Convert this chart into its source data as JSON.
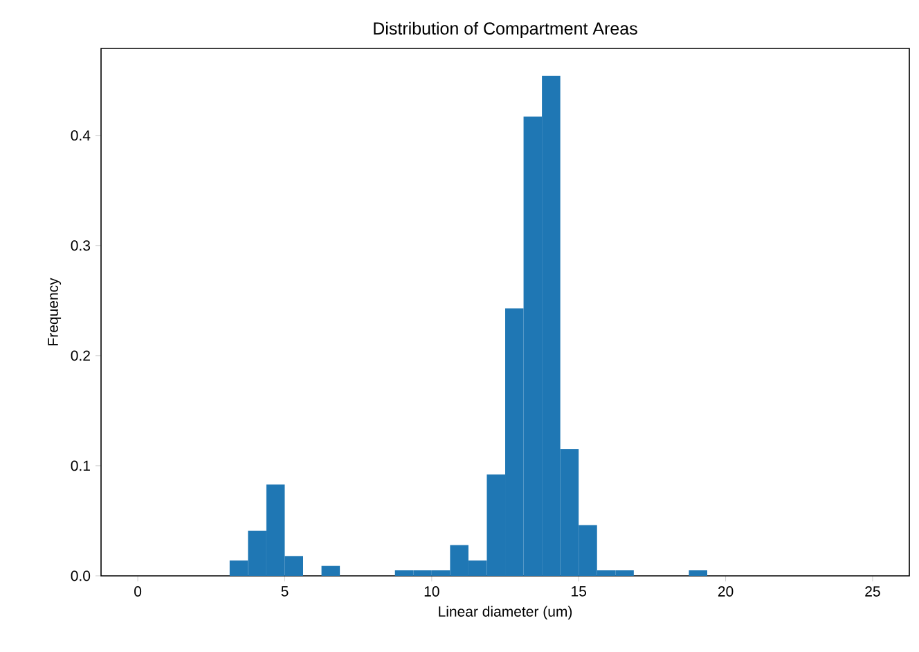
{
  "chart_data": {
    "type": "histogram",
    "title": "Distribution of Compartment Areas",
    "xlabel": "Linear diameter (um)",
    "ylabel": "Frequency",
    "bins": [
      0,
      0.625,
      1.25,
      1.875,
      2.5,
      3.125,
      3.75,
      4.375,
      5,
      5.625,
      6.25,
      6.875,
      7.5,
      8.125,
      8.75,
      9.375,
      10,
      10.625,
      11.25,
      11.875,
      12.5,
      13.125,
      13.75,
      14.375,
      15,
      15.625,
      16.25,
      16.875,
      17.5,
      18.125,
      18.75,
      19.375,
      20,
      20.625,
      21.25,
      21.875,
      22.5,
      23.125,
      23.75,
      24.375,
      25
    ],
    "values": [
      0,
      0,
      0,
      0,
      0,
      0.014,
      0.041,
      0.083,
      0.018,
      0,
      0.009,
      0,
      0,
      0,
      0.005,
      0.005,
      0.005,
      0.028,
      0.014,
      0.092,
      0.243,
      0.417,
      0.454,
      0.115,
      0.046,
      0.005,
      0.005,
      0,
      0,
      0,
      0.005,
      0,
      0,
      0,
      0,
      0,
      0,
      0,
      0,
      0
    ],
    "color": "#1f77b4",
    "xlim": [
      -1.25,
      26.25
    ],
    "ylim": [
      0,
      0.479
    ],
    "xticks": [
      0,
      5,
      10,
      15,
      20,
      25
    ],
    "yticks": [
      {
        "value": 0,
        "label": "0.0"
      },
      {
        "value": 0.1,
        "label": "0.1"
      },
      {
        "value": 0.2,
        "label": "0.2"
      },
      {
        "value": 0.3,
        "label": "0.3"
      },
      {
        "value": 0.4,
        "label": "0.4"
      }
    ],
    "grid": false
  }
}
